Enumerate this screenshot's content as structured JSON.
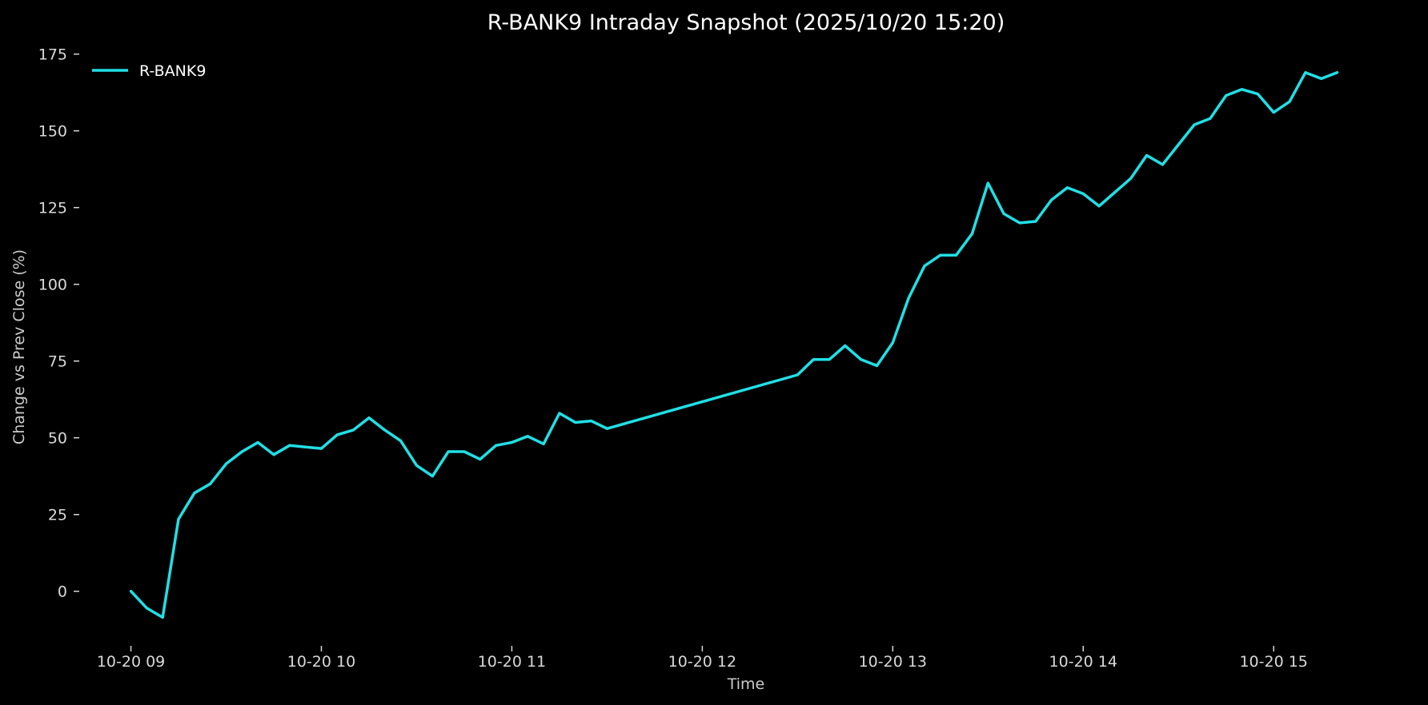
{
  "chart_data": {
    "type": "line",
    "title": "R-BANK9 Intraday Snapshot (2025/10/20 15:20)",
    "xlabel": "Time",
    "ylabel": "Change vs Prev Close (%)",
    "x_unit": "time of day (HH:MM), 2025-10-20",
    "xlim": [
      "08:47",
      "15:35"
    ],
    "ylim": [
      -17,
      177
    ],
    "x_ticks": [
      {
        "value": "09:00",
        "label": "10-20 09"
      },
      {
        "value": "10:00",
        "label": "10-20 10"
      },
      {
        "value": "11:00",
        "label": "10-20 11"
      },
      {
        "value": "12:00",
        "label": "10-20 12"
      },
      {
        "value": "13:00",
        "label": "10-20 13"
      },
      {
        "value": "14:00",
        "label": "10-20 14"
      },
      {
        "value": "15:00",
        "label": "10-20 15"
      }
    ],
    "y_ticks": [
      0,
      25,
      50,
      75,
      100,
      125,
      150,
      175
    ],
    "grid": false,
    "legend_position": "top-left",
    "series": [
      {
        "name": "R-BANK9",
        "color": "#1fe0e6",
        "points": [
          [
            "09:00",
            0
          ],
          [
            "09:05",
            -5.5
          ],
          [
            "09:10",
            -8.5
          ],
          [
            "09:15",
            23.5
          ],
          [
            "09:20",
            32
          ],
          [
            "09:25",
            35
          ],
          [
            "09:30",
            41.5
          ],
          [
            "09:35",
            45.5
          ],
          [
            "09:40",
            48.5
          ],
          [
            "09:45",
            44.5
          ],
          [
            "09:50",
            47.5
          ],
          [
            "09:55",
            47
          ],
          [
            "10:00",
            46.5
          ],
          [
            "10:05",
            51
          ],
          [
            "10:10",
            52.5
          ],
          [
            "10:15",
            56.5
          ],
          [
            "10:20",
            52.5
          ],
          [
            "10:25",
            49
          ],
          [
            "10:30",
            41
          ],
          [
            "10:35",
            37.5
          ],
          [
            "10:40",
            45.5
          ],
          [
            "10:45",
            45.5
          ],
          [
            "10:50",
            43
          ],
          [
            "10:55",
            47.5
          ],
          [
            "11:00",
            48.5
          ],
          [
            "11:05",
            50.5
          ],
          [
            "11:10",
            48
          ],
          [
            "11:15",
            58
          ],
          [
            "11:20",
            55
          ],
          [
            "11:25",
            55.5
          ],
          [
            "11:30",
            53
          ],
          [
            "12:30",
            70.5
          ],
          [
            "12:35",
            75.5
          ],
          [
            "12:40",
            75.5
          ],
          [
            "12:45",
            80
          ],
          [
            "12:50",
            75.5
          ],
          [
            "12:55",
            73.5
          ],
          [
            "13:00",
            81
          ],
          [
            "13:05",
            95.5
          ],
          [
            "13:10",
            106
          ],
          [
            "13:15",
            109.5
          ],
          [
            "13:20",
            109.5
          ],
          [
            "13:25",
            116.5
          ],
          [
            "13:30",
            133
          ],
          [
            "13:35",
            123
          ],
          [
            "13:40",
            120
          ],
          [
            "13:45",
            120.5
          ],
          [
            "13:50",
            127.5
          ],
          [
            "13:55",
            131.5
          ],
          [
            "14:00",
            129.5
          ],
          [
            "14:05",
            125.5
          ],
          [
            "14:10",
            130
          ],
          [
            "14:15",
            134.5
          ],
          [
            "14:20",
            142
          ],
          [
            "14:25",
            139
          ],
          [
            "14:30",
            145.5
          ],
          [
            "14:35",
            152
          ],
          [
            "14:40",
            154
          ],
          [
            "14:45",
            161.5
          ],
          [
            "14:50",
            163.5
          ],
          [
            "14:55",
            162
          ],
          [
            "15:00",
            156
          ],
          [
            "15:05",
            159.5
          ],
          [
            "15:10",
            169
          ],
          [
            "15:15",
            167
          ],
          [
            "15:20",
            169
          ]
        ]
      }
    ]
  }
}
